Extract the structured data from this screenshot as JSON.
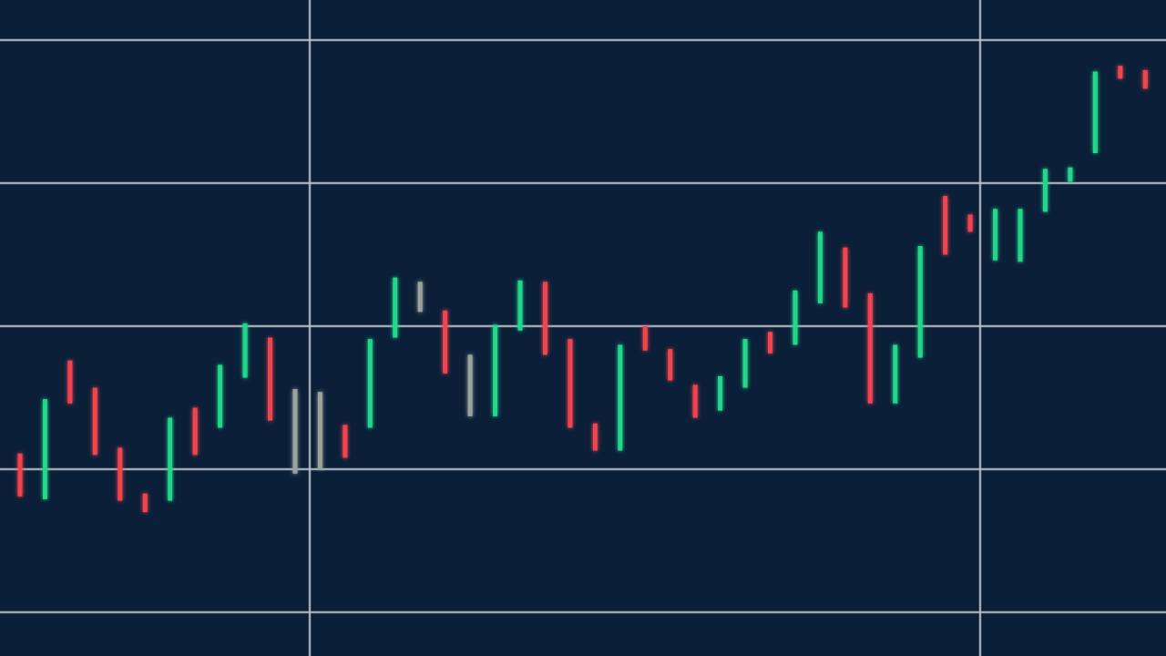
{
  "chart_data": {
    "type": "candlestick",
    "title": "",
    "xlabel": "",
    "ylabel": "",
    "grid": true,
    "ylim": [
      -0.3,
      4.5
    ],
    "colors": {
      "background": "#0b1f38",
      "up": "#22d68a",
      "down": "#f0454f",
      "neutral": "#9aa39c",
      "grid": "#b9c0c8"
    },
    "candles": [
      {
        "high": 1.11,
        "low": 0.81,
        "dir": "down"
      },
      {
        "high": 1.49,
        "low": 0.79,
        "dir": "up"
      },
      {
        "high": 1.76,
        "low": 1.46,
        "dir": "down"
      },
      {
        "high": 1.57,
        "low": 1.1,
        "dir": "down"
      },
      {
        "high": 1.15,
        "low": 0.78,
        "dir": "down"
      },
      {
        "high": 0.83,
        "low": 0.7,
        "dir": "down"
      },
      {
        "high": 1.36,
        "low": 0.78,
        "dir": "up"
      },
      {
        "high": 1.43,
        "low": 1.1,
        "dir": "down"
      },
      {
        "high": 1.73,
        "low": 1.29,
        "dir": "up"
      },
      {
        "high": 2.02,
        "low": 1.64,
        "dir": "up"
      },
      {
        "high": 1.92,
        "low": 1.34,
        "dir": "down"
      },
      {
        "high": 1.56,
        "low": 0.97,
        "dir": "neutral"
      },
      {
        "high": 1.54,
        "low": 1.0,
        "dir": "neutral"
      },
      {
        "high": 1.31,
        "low": 1.08,
        "dir": "down"
      },
      {
        "high": 1.91,
        "low": 1.29,
        "dir": "up"
      },
      {
        "high": 2.34,
        "low": 1.92,
        "dir": "up"
      },
      {
        "high": 2.31,
        "low": 2.1,
        "dir": "neutral"
      },
      {
        "high": 2.11,
        "low": 1.67,
        "dir": "down"
      },
      {
        "high": 1.8,
        "low": 1.37,
        "dir": "neutral"
      },
      {
        "high": 2.01,
        "low": 1.37,
        "dir": "up"
      },
      {
        "high": 2.32,
        "low": 1.97,
        "dir": "up"
      },
      {
        "high": 2.31,
        "low": 1.8,
        "dir": "down"
      },
      {
        "high": 1.91,
        "low": 1.29,
        "dir": "down"
      },
      {
        "high": 1.32,
        "low": 1.13,
        "dir": "down"
      },
      {
        "high": 1.87,
        "low": 1.13,
        "dir": "up"
      },
      {
        "high": 2.0,
        "low": 1.83,
        "dir": "down"
      },
      {
        "high": 1.84,
        "low": 1.62,
        "dir": "down"
      },
      {
        "high": 1.59,
        "low": 1.36,
        "dir": "down"
      },
      {
        "high": 1.65,
        "low": 1.41,
        "dir": "up"
      },
      {
        "high": 1.91,
        "low": 1.57,
        "dir": "up"
      },
      {
        "high": 1.96,
        "low": 1.81,
        "dir": "down"
      },
      {
        "high": 2.25,
        "low": 1.87,
        "dir": "up"
      },
      {
        "high": 2.66,
        "low": 2.16,
        "dir": "up"
      },
      {
        "high": 2.55,
        "low": 2.13,
        "dir": "down"
      },
      {
        "high": 2.23,
        "low": 1.46,
        "dir": "down"
      },
      {
        "high": 1.87,
        "low": 1.46,
        "dir": "up"
      },
      {
        "high": 2.56,
        "low": 1.78,
        "dir": "up"
      },
      {
        "high": 2.91,
        "low": 2.5,
        "dir": "down"
      },
      {
        "high": 2.78,
        "low": 2.66,
        "dir": "down"
      },
      {
        "high": 2.82,
        "low": 2.46,
        "dir": "up"
      },
      {
        "high": 2.82,
        "low": 2.45,
        "dir": "up"
      },
      {
        "high": 3.1,
        "low": 2.8,
        "dir": "up"
      },
      {
        "high": 3.11,
        "low": 3.01,
        "dir": "up"
      },
      {
        "high": 3.78,
        "low": 3.21,
        "dir": "up"
      },
      {
        "high": 3.82,
        "low": 3.73,
        "dir": "down"
      },
      {
        "high": 3.79,
        "low": 3.66,
        "dir": "down"
      }
    ]
  }
}
